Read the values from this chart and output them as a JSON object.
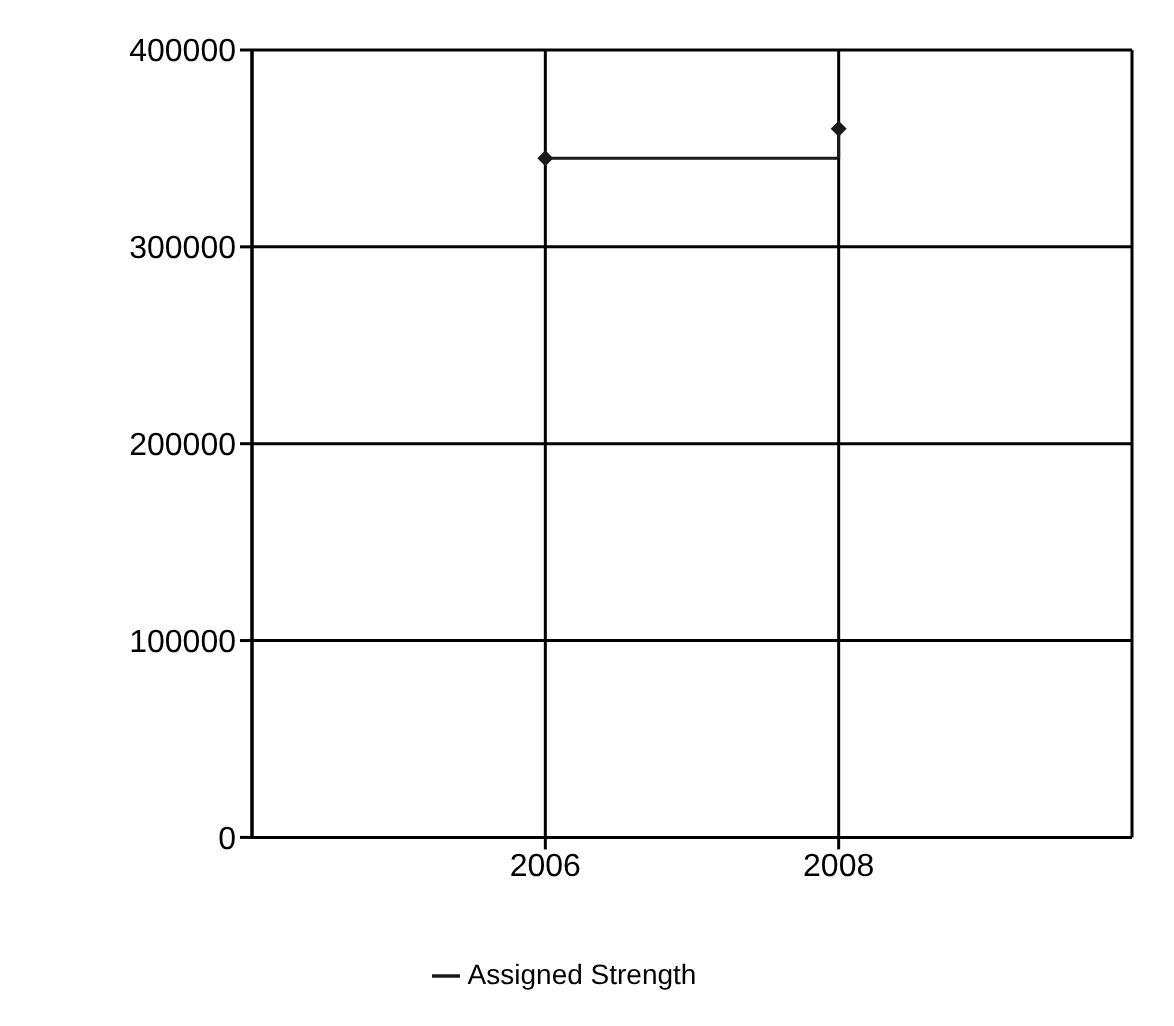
{
  "chart_data": {
    "type": "step",
    "x": [
      2006,
      2008
    ],
    "series": [
      {
        "name": "Assigned Strength",
        "color": "#1a1a1a",
        "values": [
          345000,
          360000
        ]
      }
    ],
    "xlim": [
      2004,
      2010
    ],
    "xticks": [
      2006,
      2008
    ],
    "ylim": [
      0,
      400000
    ],
    "yticks": [
      0,
      100000,
      200000,
      300000,
      400000
    ],
    "grid": true,
    "legend": "bottom",
    "marker": "diamond",
    "line_style": "solid"
  }
}
